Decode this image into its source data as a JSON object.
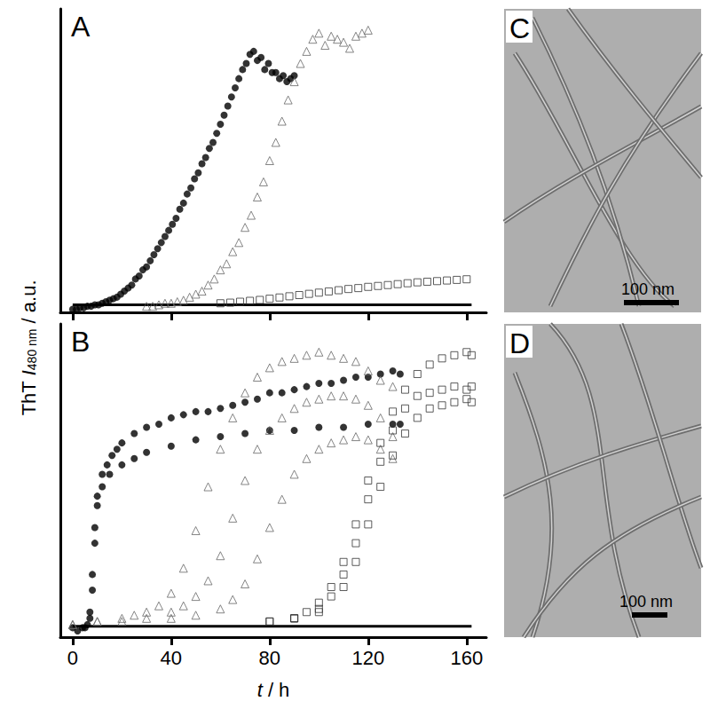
{
  "ylabel": [
    "ThT ",
    "I",
    "480 nm",
    " / a.u."
  ],
  "chart_data": [
    {
      "panel": "A",
      "type": "scatter",
      "xlim": [
        -5,
        168
      ],
      "xticks": [
        0,
        40,
        80,
        120,
        160
      ],
      "ylim": [
        0,
        100
      ],
      "yticks": [],
      "tick_labels": false,
      "grid": false,
      "series": [
        {
          "marker": "filled_circle",
          "color": "#000000",
          "x": [
            0,
            3,
            6,
            9,
            12,
            15,
            18,
            21,
            24,
            27,
            30,
            33,
            36,
            39,
            42,
            45,
            48,
            51,
            54,
            57,
            60,
            63,
            66,
            69,
            72,
            75,
            78,
            81,
            84,
            87,
            90
          ],
          "values": [
            1,
            1.5,
            2,
            2.5,
            3,
            4,
            5,
            7,
            9,
            12,
            15,
            19,
            23,
            27,
            31,
            36,
            41,
            46,
            51,
            56,
            62,
            68,
            74,
            80,
            85,
            83,
            80,
            79,
            77,
            76,
            78
          ]
        },
        {
          "marker": "filled_circle",
          "color": "#000000",
          "x": [
            1.5,
            4.5,
            7.5,
            10.5,
            13.5,
            16.5,
            19.5,
            22.5,
            25.5,
            28.5,
            31.5,
            34.5,
            37.5,
            40.5,
            43.5,
            46.5,
            49.5,
            52.5,
            55.5,
            58.5,
            61.5,
            64.5,
            67.5,
            70.5,
            73.5,
            76.5,
            79.5,
            82.5,
            85.5,
            88.5
          ],
          "values": [
            1,
            1.5,
            2,
            2.5,
            3.5,
            4.5,
            6,
            8,
            11,
            14,
            17,
            21,
            25,
            29,
            34,
            39,
            44,
            49,
            54,
            59,
            65,
            71,
            77,
            82,
            86,
            84,
            82,
            79,
            78,
            77
          ]
        },
        {
          "marker": "open_triangle",
          "color": "#666666",
          "x": [
            30,
            35,
            40,
            45,
            50,
            55,
            60,
            65,
            70,
            75,
            80,
            85,
            90,
            95,
            100,
            105,
            110,
            115,
            120
          ],
          "values": [
            2,
            2.5,
            3,
            4,
            6,
            9,
            14,
            20,
            28,
            38,
            50,
            63,
            76,
            86,
            92,
            91,
            89,
            91,
            93
          ]
        },
        {
          "marker": "open_triangle",
          "color": "#666666",
          "x": [
            32.5,
            37.5,
            42.5,
            47.5,
            52.5,
            57.5,
            62.5,
            67.5,
            72.5,
            77.5,
            82.5,
            87.5,
            92.5,
            97.5,
            102.5,
            107.5,
            112.5,
            117.5
          ],
          "values": [
            2,
            3,
            3.5,
            5,
            7,
            11,
            16,
            23,
            32,
            43,
            56,
            70,
            82,
            90,
            88,
            90,
            87,
            92
          ]
        },
        {
          "marker": "open_square",
          "color": "#333333",
          "x": [
            60,
            64,
            68,
            72,
            76,
            80,
            84,
            88,
            92,
            96,
            100,
            104,
            108,
            112,
            116,
            120,
            124,
            128,
            132,
            136,
            140,
            144,
            148,
            152,
            156,
            160
          ],
          "values": [
            3,
            3.2,
            3.5,
            3.8,
            4.1,
            4.5,
            4.9,
            5.3,
            5.7,
            6.1,
            6.5,
            6.9,
            7.3,
            7.7,
            8,
            8.4,
            8.7,
            9,
            9.3,
            9.6,
            9.9,
            10.1,
            10.3,
            10.5,
            10.7,
            10.9
          ]
        },
        {
          "type": "line",
          "line_style": "solid",
          "color": "#000000",
          "x": [
            0,
            162
          ],
          "values": [
            2.5,
            2.5
          ]
        }
      ]
    },
    {
      "panel": "B",
      "type": "scatter",
      "xlim": [
        -5,
        168
      ],
      "xticks": [
        0,
        40,
        80,
        120,
        160
      ],
      "ylim": [
        0,
        100
      ],
      "yticks": [],
      "tick_labels": "x",
      "grid": false,
      "xlabel": [
        "t",
        " / h"
      ],
      "series": [
        {
          "marker": "filled_circle",
          "color": "#000000",
          "x": [
            0,
            2,
            4,
            6,
            7,
            8,
            9,
            10,
            12,
            14,
            16,
            18,
            20,
            25,
            30,
            35,
            40,
            45,
            50,
            55,
            60,
            65,
            70,
            75,
            80,
            85,
            90,
            95,
            100,
            105,
            110,
            115,
            120,
            125,
            130,
            133
          ],
          "values": [
            3,
            2,
            3,
            4,
            8,
            20,
            35,
            45,
            52,
            55,
            58,
            60,
            62,
            65,
            67,
            68,
            70,
            71,
            72,
            72,
            73,
            74,
            75,
            76,
            78,
            78,
            79,
            80,
            81,
            81,
            82,
            83,
            83,
            84,
            85,
            84
          ]
        },
        {
          "marker": "filled_circle",
          "color": "#000000",
          "x": [
            5,
            7,
            8,
            9,
            10,
            12,
            15,
            20,
            25,
            30,
            40,
            50,
            60,
            70,
            80,
            90,
            100,
            110,
            120,
            130,
            133
          ],
          "values": [
            3,
            6,
            15,
            30,
            42,
            48,
            52,
            55,
            57,
            59,
            61,
            63,
            64,
            65,
            66,
            66,
            67,
            67,
            68,
            68,
            68
          ]
        },
        {
          "marker": "open_triangle",
          "color": "#666666",
          "x": [
            0,
            10,
            20,
            25,
            30,
            35,
            40,
            45,
            50,
            55,
            60,
            65,
            70,
            75,
            80,
            85,
            90,
            95,
            100,
            105,
            110,
            115,
            120,
            125,
            130
          ],
          "values": [
            4,
            5,
            6,
            7,
            8,
            10,
            14,
            22,
            34,
            48,
            60,
            70,
            78,
            83,
            86,
            88,
            89,
            90,
            91,
            90,
            89,
            88,
            85,
            82,
            80
          ]
        },
        {
          "marker": "open_triangle",
          "color": "#666666",
          "x": [
            0,
            10,
            20,
            30,
            40,
            45,
            50,
            55,
            60,
            65,
            70,
            75,
            80,
            85,
            90,
            95,
            100,
            105,
            110,
            115,
            120,
            125,
            130
          ],
          "values": [
            4,
            5,
            5,
            6,
            8,
            10,
            13,
            18,
            26,
            38,
            50,
            60,
            66,
            70,
            73,
            75,
            76,
            77,
            77,
            76,
            74,
            70,
            64
          ]
        },
        {
          "marker": "open_triangle",
          "color": "#666666",
          "x": [
            40,
            50,
            60,
            65,
            70,
            75,
            80,
            85,
            90,
            95,
            100,
            105,
            110,
            115,
            120,
            125,
            130
          ],
          "values": [
            6,
            7,
            9,
            12,
            17,
            25,
            35,
            44,
            52,
            57,
            60,
            62,
            63,
            64,
            63,
            60,
            57
          ]
        },
        {
          "marker": "open_square",
          "color": "#333333",
          "x": [
            80,
            90,
            95,
            100,
            105,
            110,
            115,
            120,
            125,
            130,
            135,
            140,
            145,
            150,
            155,
            160,
            162
          ],
          "values": [
            5,
            6,
            8,
            11,
            16,
            24,
            36,
            50,
            62,
            72,
            79,
            84,
            87,
            89,
            90,
            91,
            90
          ]
        },
        {
          "marker": "open_square",
          "color": "#333333",
          "x": [
            80,
            90,
            100,
            105,
            110,
            115,
            120,
            125,
            130,
            135,
            140,
            145,
            150,
            155,
            160,
            162
          ],
          "values": [
            5,
            6,
            9,
            13,
            20,
            30,
            44,
            56,
            66,
            73,
            77,
            78,
            79,
            80,
            79,
            80
          ]
        },
        {
          "marker": "open_square",
          "color": "#333333",
          "x": [
            90,
            100,
            110,
            115,
            120,
            125,
            130,
            135,
            140,
            145,
            150,
            155,
            160,
            162
          ],
          "values": [
            6,
            8,
            16,
            24,
            36,
            48,
            58,
            65,
            70,
            73,
            74,
            75,
            76,
            75
          ]
        },
        {
          "type": "line",
          "line_style": "solid",
          "color": "#000000",
          "x": [
            0,
            162
          ],
          "values": [
            3.5,
            3.5
          ]
        }
      ]
    }
  ],
  "images": [
    {
      "panel": "C",
      "scale_bar": "100 nm"
    },
    {
      "panel": "D",
      "scale_bar": "100 nm"
    }
  ]
}
